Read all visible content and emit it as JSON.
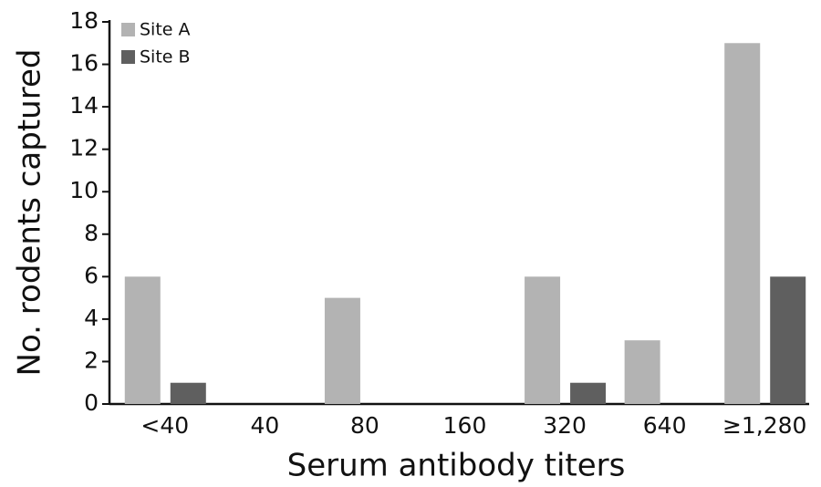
{
  "chart_data": {
    "type": "bar",
    "x_label": "Serum antibody titers",
    "y_label": "No. rodents captured",
    "categories": [
      "<40",
      "40",
      "80",
      "160",
      "320",
      "640",
      "≥1,280"
    ],
    "series": [
      {
        "name": "Site A",
        "color": "#b3b3b3",
        "values": [
          6,
          0,
          5,
          0,
          6,
          3,
          17
        ]
      },
      {
        "name": "Site B",
        "color": "#5f5f5f",
        "values": [
          1,
          0,
          0,
          0,
          1,
          0,
          6
        ]
      }
    ],
    "ylim": [
      0,
      18
    ],
    "yticks": [
      0,
      2,
      4,
      6,
      8,
      10,
      12,
      14,
      16,
      18
    ],
    "legend": "upper-left",
    "grid": false
  }
}
